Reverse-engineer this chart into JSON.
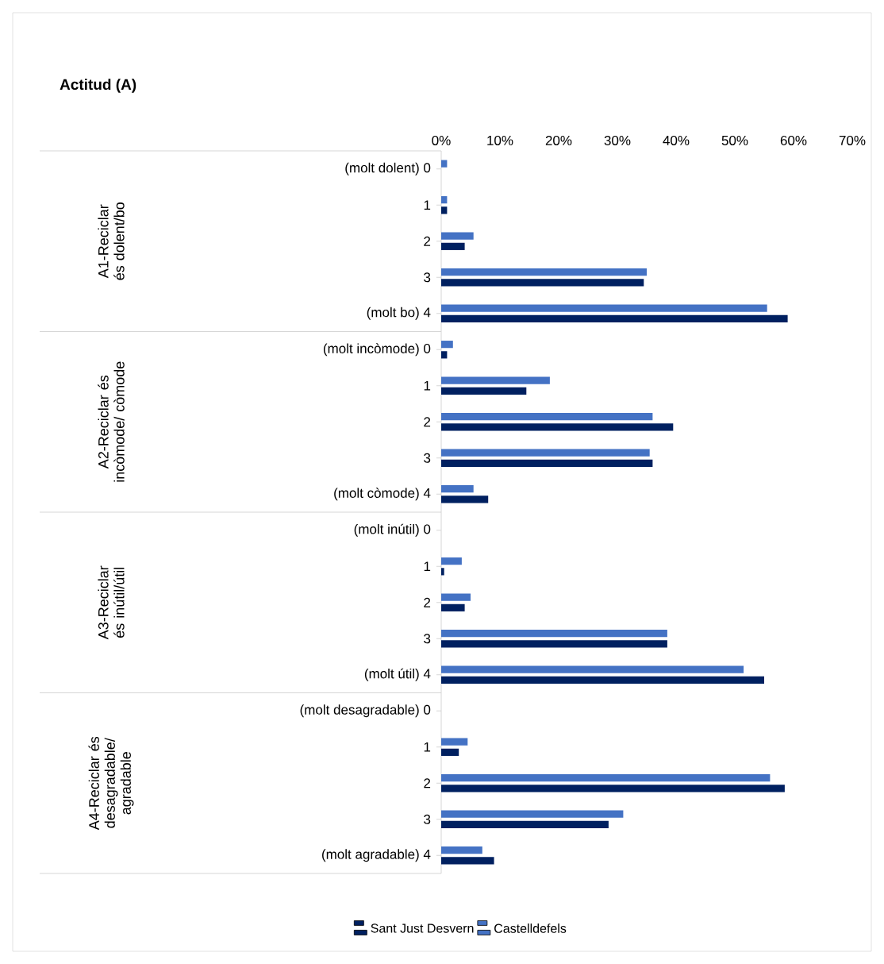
{
  "chart_data": {
    "type": "bar",
    "orientation": "horizontal",
    "title": "Actitud (A)",
    "categories": [
      "(molt dolent) 0",
      "1",
      "2",
      "3",
      "(molt bo) 4",
      "(molt incòmode) 0",
      "1",
      "2",
      "3",
      "(molt còmode) 4",
      "(molt inútil) 0",
      "1",
      "2",
      "3",
      "(molt útil) 4",
      "(molt desagradable) 0",
      "1",
      "2",
      "3",
      "(molt agradable) 4"
    ],
    "annotations": [
      "A1-Reciclar és dolent/bo",
      "A2-Reciclar és incòmode/ còmode",
      "A3-Reciclar és inútil/útil",
      "A4-Reciclar és desagradable/ agradable"
    ],
    "series": [
      {
        "name": "Sant Just Desvern",
        "color": "#002060",
        "values": [
          0,
          1,
          4,
          34.5,
          59,
          1,
          14.5,
          39.5,
          36,
          8,
          0,
          0.5,
          4,
          38.5,
          55,
          0,
          3,
          58.5,
          28.5,
          9
        ]
      },
      {
        "name": "Castelldefels",
        "color": "#4472c4",
        "values": [
          1,
          1,
          5.5,
          35,
          55.5,
          2,
          18.5,
          36,
          35.5,
          5.5,
          0,
          3.5,
          5,
          38.5,
          51.5,
          0,
          4.5,
          56,
          31,
          7
        ]
      }
    ],
    "xlim": [
      0,
      70
    ],
    "xticks": [
      {
        "value": 0,
        "label": "0%"
      },
      {
        "value": 10,
        "label": "10%"
      },
      {
        "value": 20,
        "label": "20%"
      },
      {
        "value": 30,
        "label": "30%"
      },
      {
        "value": 40,
        "label": "40%"
      },
      {
        "value": 50,
        "label": "50%"
      },
      {
        "value": 60,
        "label": "60%"
      },
      {
        "value": 70,
        "label": "70%"
      }
    ],
    "legend": "bottom"
  }
}
